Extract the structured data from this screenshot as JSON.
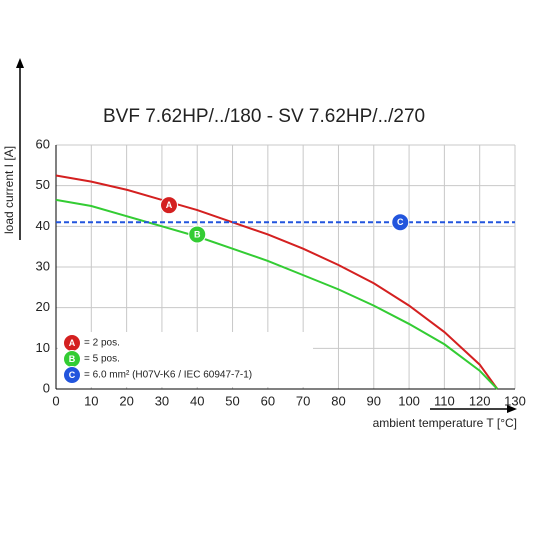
{
  "chart_data": {
    "type": "line",
    "title": "BVF 7.62HP/../180 - SV 7.62HP/../270",
    "x_label": "ambient temperature T [°C]",
    "y_label": "load current I [A]",
    "xlim": [
      0,
      130
    ],
    "xticks": [
      0,
      10,
      20,
      30,
      40,
      50,
      60,
      70,
      80,
      90,
      100,
      110,
      120,
      130
    ],
    "ylim": [
      0,
      60
    ],
    "yticks": [
      0,
      10,
      20,
      30,
      40,
      50,
      60
    ],
    "grid": true,
    "series": [
      {
        "name": "= 2 pos.",
        "marker": "A",
        "color": "#d42020",
        "dashed": false,
        "x": [
          0,
          10,
          20,
          30,
          40,
          50,
          60,
          70,
          80,
          90,
          100,
          110,
          120,
          125
        ],
        "values": [
          52.5,
          51,
          49,
          46.5,
          44,
          41,
          38,
          34.5,
          30.5,
          26,
          20.5,
          14,
          6,
          0
        ],
        "marker_pos": [
          32,
          45.2
        ]
      },
      {
        "name": "= 5 pos.",
        "marker": "B",
        "color": "#33cc33",
        "dashed": false,
        "x": [
          0,
          10,
          20,
          30,
          40,
          50,
          60,
          70,
          80,
          90,
          100,
          110,
          120,
          125
        ],
        "values": [
          46.5,
          45,
          42.5,
          40,
          37.5,
          34.5,
          31.5,
          28,
          24.5,
          20.5,
          16,
          11,
          4.5,
          0
        ],
        "marker_pos": [
          40,
          38
        ]
      },
      {
        "name": "= 6.0 mm² (H07V-K6 / IEC 60947-7-1)",
        "marker": "C",
        "color": "#2255dd",
        "dashed": true,
        "x": [
          0,
          130
        ],
        "values": [
          41,
          41
        ],
        "marker_pos": [
          97.5,
          41
        ]
      }
    ]
  }
}
